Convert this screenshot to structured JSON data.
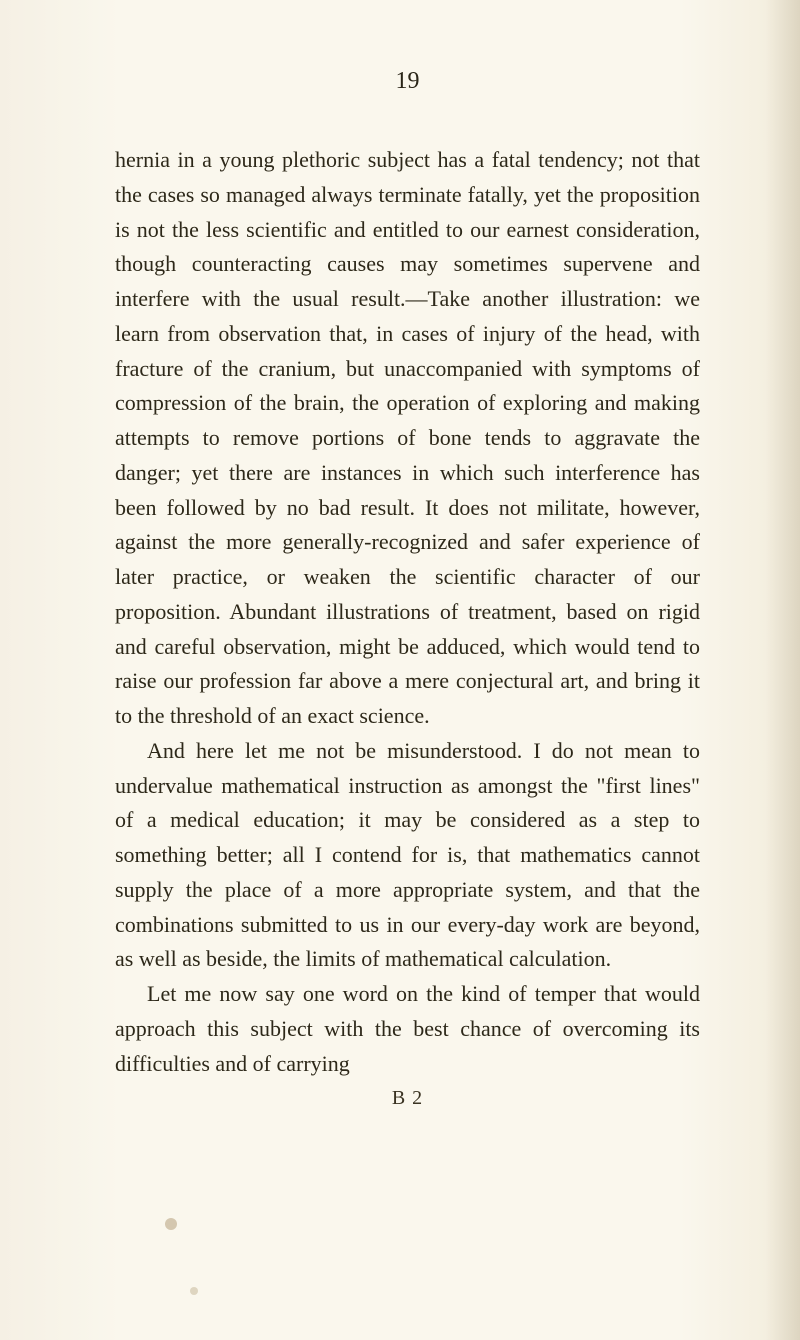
{
  "page": {
    "number": "19",
    "background_color": "#f7f3e9",
    "text_color": "#2d2819",
    "font_family": "Georgia, 'Times New Roman', serif",
    "body_fontsize": 22,
    "line_height": 1.58,
    "signature": "B 2"
  },
  "paragraphs": [
    {
      "indent": false,
      "text": "hernia in a young plethoric subject has a fatal tendency; not that the cases so managed always terminate fatally, yet the proposition is not the less scientific and entitled to our earnest consideration, though counteracting causes may sometimes supervene and interfere with the usual result.—Take another illustration: we learn from observation that, in cases of injury of the head, with fracture of the cranium, but unaccompanied with symptoms of compression of the brain, the operation of exploring and making attempts to remove portions of bone tends to aggravate the danger; yet there are instances in which such interference has been followed by no bad result. It does not militate, however, against the more generally-recognized and safer experience of later practice, or weaken the scientific character of our proposition. Abundant illustrations of treatment, based on rigid and careful observation, might be adduced, which would tend to raise our profession far above a mere conjectural art, and bring it to the threshold of an exact science."
    },
    {
      "indent": true,
      "text": "And here let me not be misunderstood. I do not mean to undervalue mathematical instruction as amongst the \"first lines\" of a medical education; it may be considered as a step to something better; all I contend for is, that mathematics cannot supply the place of a more appropriate system, and that the combinations submitted to us in our every-day work are beyond, as well as beside, the limits of mathematical calculation."
    },
    {
      "indent": true,
      "text": "Let me now say one word on the kind of temper that would approach this subject with the best chance of overcoming its difficulties and of carrying"
    }
  ]
}
